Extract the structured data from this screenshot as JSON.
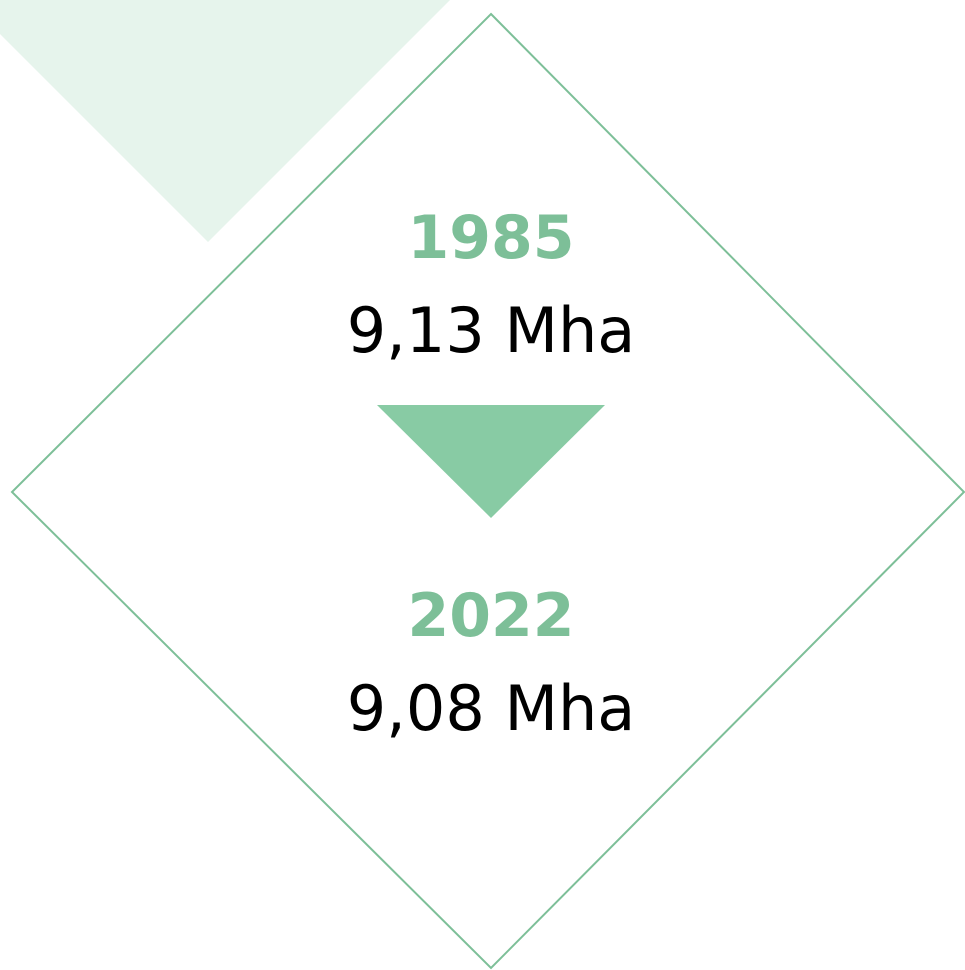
{
  "items": [
    {
      "year": "1985",
      "value": "9,13 Mha"
    },
    {
      "year": "2022",
      "value": "9,08 Mha"
    }
  ]
}
